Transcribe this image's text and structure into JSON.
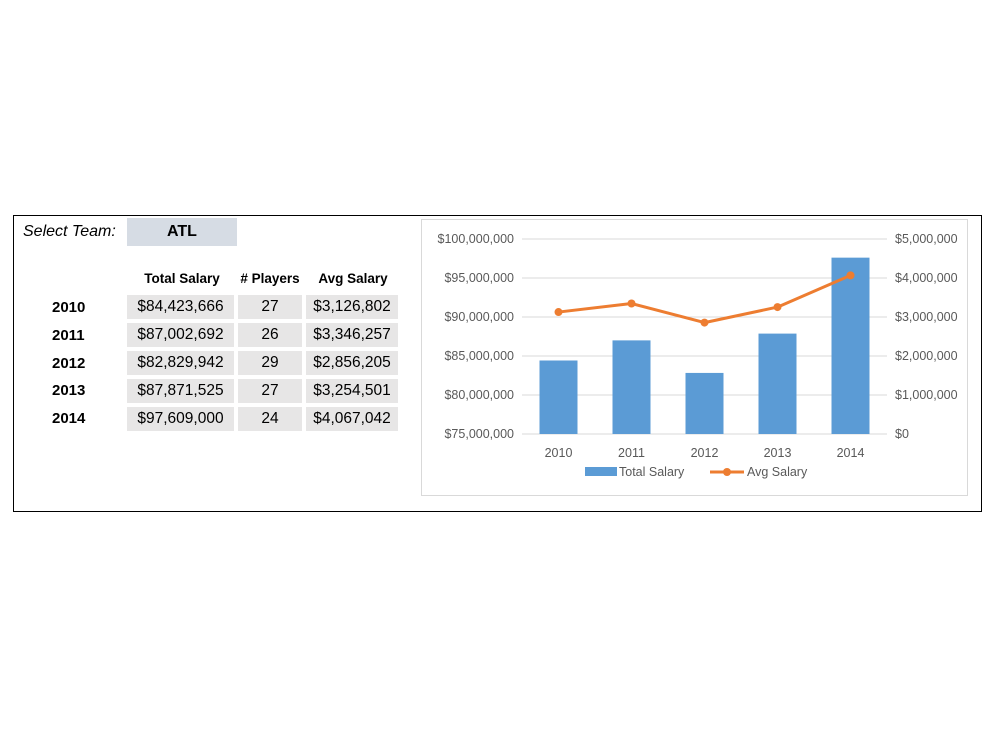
{
  "selector": {
    "label": "Select Team:",
    "value": "ATL"
  },
  "table": {
    "headers": [
      "Total Salary",
      "# Players",
      "Avg Salary"
    ],
    "rows": [
      {
        "year": "2010",
        "total": "$84,423,666",
        "players": "27",
        "avg": "$3,126,802"
      },
      {
        "year": "2011",
        "total": "$87,002,692",
        "players": "26",
        "avg": "$3,346,257"
      },
      {
        "year": "2012",
        "total": "$82,829,942",
        "players": "29",
        "avg": "$2,856,205"
      },
      {
        "year": "2013",
        "total": "$87,871,525",
        "players": "27",
        "avg": "$3,254,501"
      },
      {
        "year": "2014",
        "total": "$97,609,000",
        "players": "24",
        "avg": "$4,067,042"
      }
    ]
  },
  "chart_data": {
    "type": "bar",
    "categories": [
      "2010",
      "2011",
      "2012",
      "2013",
      "2014"
    ],
    "series": [
      {
        "name": "Total Salary",
        "type": "bar",
        "axis": "left",
        "color": "#5b9bd5",
        "values": [
          84423666,
          87002692,
          82829942,
          87871525,
          97609000
        ]
      },
      {
        "name": "Avg Salary",
        "type": "line",
        "axis": "right",
        "color": "#ed7d31",
        "values": [
          3126802,
          3346257,
          2856205,
          3254501,
          4067042
        ]
      }
    ],
    "y_left": {
      "range": [
        75000000,
        100000000
      ],
      "ticks": [
        75000000,
        80000000,
        85000000,
        90000000,
        95000000,
        100000000
      ],
      "tick_labels": [
        "$75,000,000",
        "$80,000,000",
        "$85,000,000",
        "$90,000,000",
        "$95,000,000",
        "$100,000,000"
      ]
    },
    "y_right": {
      "range": [
        0,
        5000000
      ],
      "ticks": [
        0,
        1000000,
        2000000,
        3000000,
        4000000,
        5000000
      ],
      "tick_labels": [
        "$0",
        "$1,000,000",
        "$2,000,000",
        "$3,000,000",
        "$4,000,000",
        "$5,000,000"
      ]
    },
    "grid": true,
    "legend": "bottom"
  }
}
